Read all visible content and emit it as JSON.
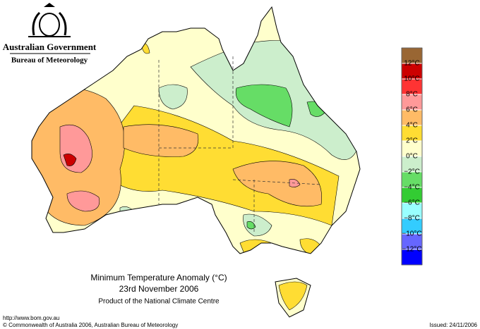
{
  "header": {
    "government": "Australian Government",
    "bureau": "Bureau of Meteorology"
  },
  "title": {
    "heading": "Minimum Temperature Anomaly (°C)",
    "date": "23rd November 2006",
    "credit": "Product of the National Climate Centre"
  },
  "footer": {
    "url": "http://www.bom.gov.au",
    "copyright": "© Commonwealth of Australia 2006, Australian Bureau of Meteorology",
    "issued": "Issued: 24/11/2006"
  },
  "legend": {
    "colors": [
      "#996633",
      "#cc0000",
      "#ff3333",
      "#ff9999",
      "#ffbb66",
      "#ffdd33",
      "#ffffcc",
      "#cceecc",
      "#66dd66",
      "#33cc33",
      "#99ffff",
      "#33ccff",
      "#6666ff",
      "#0000ff"
    ],
    "labels": [
      "12°C",
      "10°C",
      "8°C",
      "6°C",
      "4°C",
      "2°C",
      "0°C",
      "−2°C",
      "−4°C",
      "−6°C",
      "−8°C",
      "−10°C",
      "−12°C"
    ]
  }
}
